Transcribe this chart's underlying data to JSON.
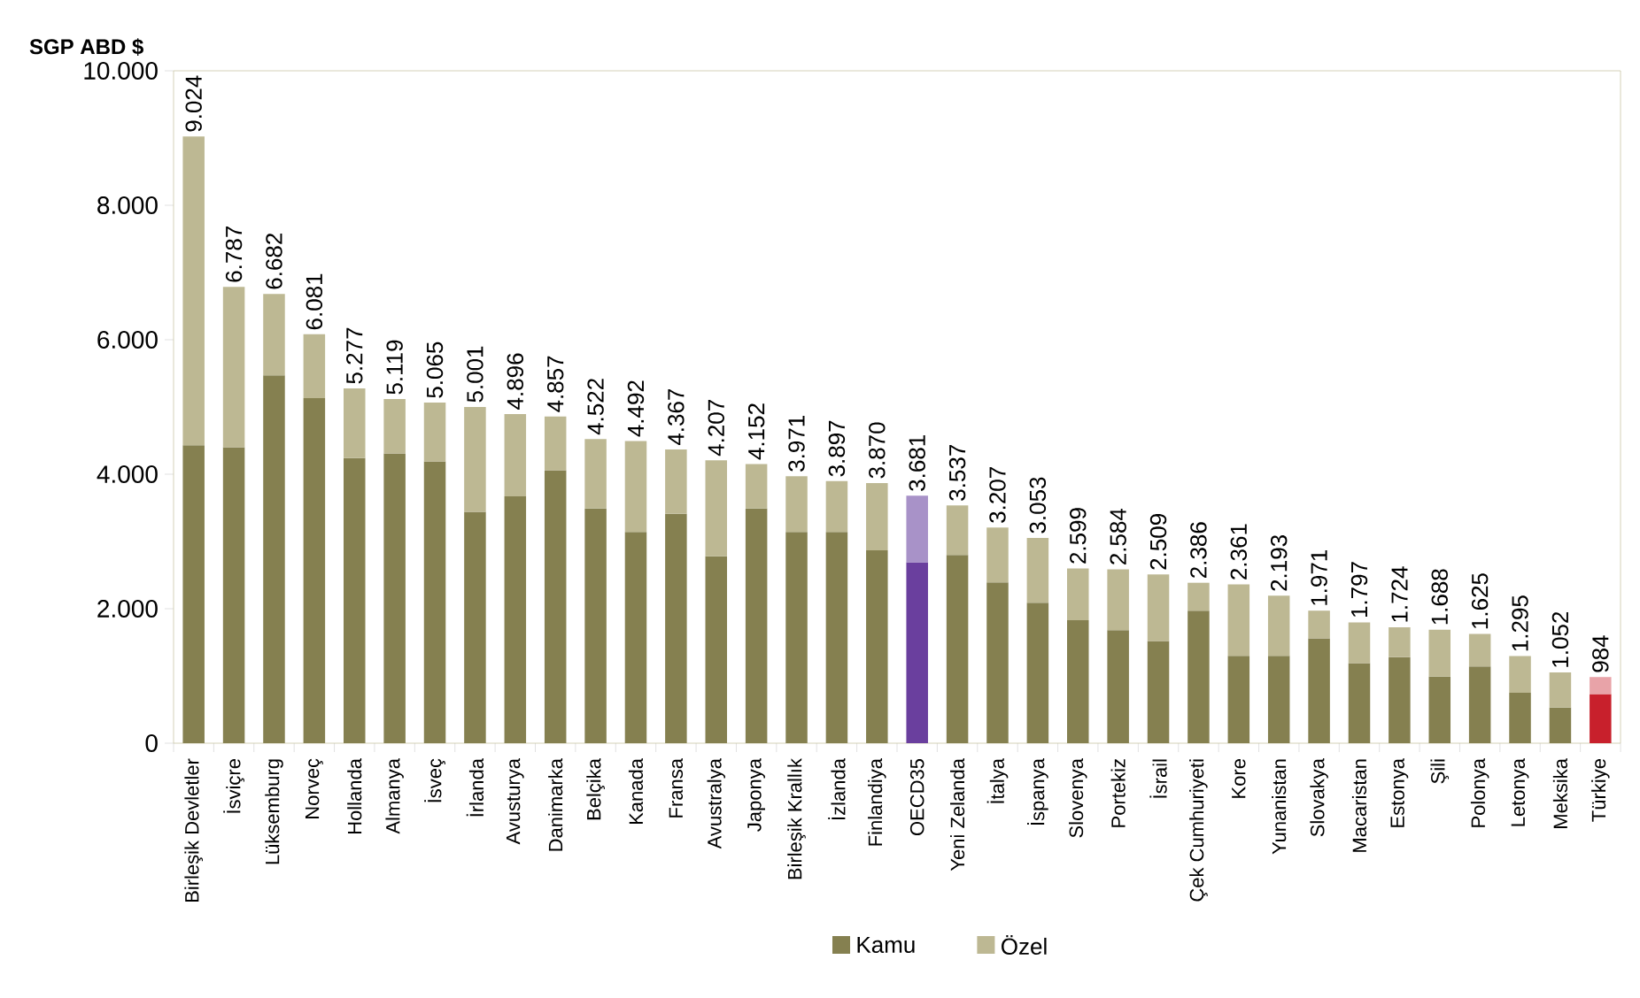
{
  "chart_data": {
    "type": "bar",
    "stacked": true,
    "ylabel": "SGP ABD $",
    "categories": [
      "Birleşik Devletler",
      "İsviçre",
      "Lüksemburg",
      "Norveç",
      "Hollanda",
      "Almanya",
      "İsveç",
      "İrlanda",
      "Avusturya",
      "Danimarka",
      "Belçika",
      "Kanada",
      "Fransa",
      "Avustralya",
      "Japonya",
      "Birleşik Krallık",
      "İzlanda",
      "Finlandiya",
      "OECD35",
      "Yeni Zelanda",
      "İtalya",
      "İspanya",
      "Slovenya",
      "Portekiz",
      "İsrail",
      "Çek Cumhuriyeti",
      "Kore",
      "Yunanistan",
      "Slovakya",
      "Macaristan",
      "Estonya",
      "Şili",
      "Polonya",
      "Letonya",
      "Meksika",
      "Türkiye"
    ],
    "series": [
      {
        "name": "Kamu",
        "color": "#858050",
        "colors": [
          "#858050",
          "#858050",
          "#858050",
          "#858050",
          "#858050",
          "#858050",
          "#858050",
          "#858050",
          "#858050",
          "#858050",
          "#858050",
          "#858050",
          "#858050",
          "#858050",
          "#858050",
          "#858050",
          "#858050",
          "#858050",
          "#6a3f9e",
          "#858050",
          "#858050",
          "#858050",
          "#858050",
          "#858050",
          "#858050",
          "#858050",
          "#858050",
          "#858050",
          "#858050",
          "#858050",
          "#858050",
          "#858050",
          "#858050",
          "#858050",
          "#858050",
          "#c8202c"
        ],
        "values": [
          4430,
          4400,
          5470,
          5130,
          4240,
          4310,
          4190,
          3440,
          3670,
          4060,
          3490,
          3140,
          3410,
          2780,
          3490,
          3140,
          3140,
          2870,
          2690,
          2800,
          2390,
          2090,
          1830,
          1680,
          1520,
          1970,
          1300,
          1300,
          1560,
          1190,
          1280,
          990,
          1140,
          750,
          530,
          730
        ]
      },
      {
        "name": "Özel",
        "color": "#bdb893",
        "colors": [
          "#bdb893",
          "#bdb893",
          "#bdb893",
          "#bdb893",
          "#bdb893",
          "#bdb893",
          "#bdb893",
          "#bdb893",
          "#bdb893",
          "#bdb893",
          "#bdb893",
          "#bdb893",
          "#bdb893",
          "#bdb893",
          "#bdb893",
          "#bdb893",
          "#bdb893",
          "#bdb893",
          "#a892c8",
          "#bdb893",
          "#bdb893",
          "#bdb893",
          "#bdb893",
          "#bdb893",
          "#bdb893",
          "#bdb893",
          "#bdb893",
          "#bdb893",
          "#bdb893",
          "#bdb893",
          "#bdb893",
          "#bdb893",
          "#bdb893",
          "#bdb893",
          "#bdb893",
          "#e8a3a8"
        ],
        "values": [
          4594,
          2387,
          1212,
          951,
          1037,
          809,
          875,
          1561,
          1226,
          797,
          1032,
          1352,
          957,
          1427,
          662,
          831,
          757,
          1000,
          991,
          737,
          817,
          963,
          769,
          904,
          989,
          416,
          1061,
          893,
          411,
          607,
          444,
          698,
          485,
          545,
          522,
          254
        ]
      }
    ],
    "totals": [
      "9.024",
      "6.787",
      "6.682",
      "6.081",
      "5.277",
      "5.119",
      "5.065",
      "5.001",
      "4.896",
      "4.857",
      "4.522",
      "4.492",
      "4.367",
      "4.207",
      "4.152",
      "3.971",
      "3.897",
      "3.870",
      "3.681",
      "3.537",
      "3.207",
      "3.053",
      "2.599",
      "2.584",
      "2.509",
      "2.386",
      "2.361",
      "2.193",
      "1.971",
      "1.797",
      "1.724",
      "1.688",
      "1.625",
      "1.295",
      "1.052",
      "984"
    ],
    "ylim": [
      0,
      10000
    ],
    "yticks": [
      0,
      {
        "value": 2000,
        "label": "2.000"
      },
      {
        "value": 4000,
        "label": "4.000"
      },
      {
        "value": 6000,
        "label": "6.000"
      },
      {
        "value": 8000,
        "label": "8.000"
      },
      {
        "value": 10000,
        "label": "10.000"
      }
    ],
    "legend": "bottom"
  }
}
